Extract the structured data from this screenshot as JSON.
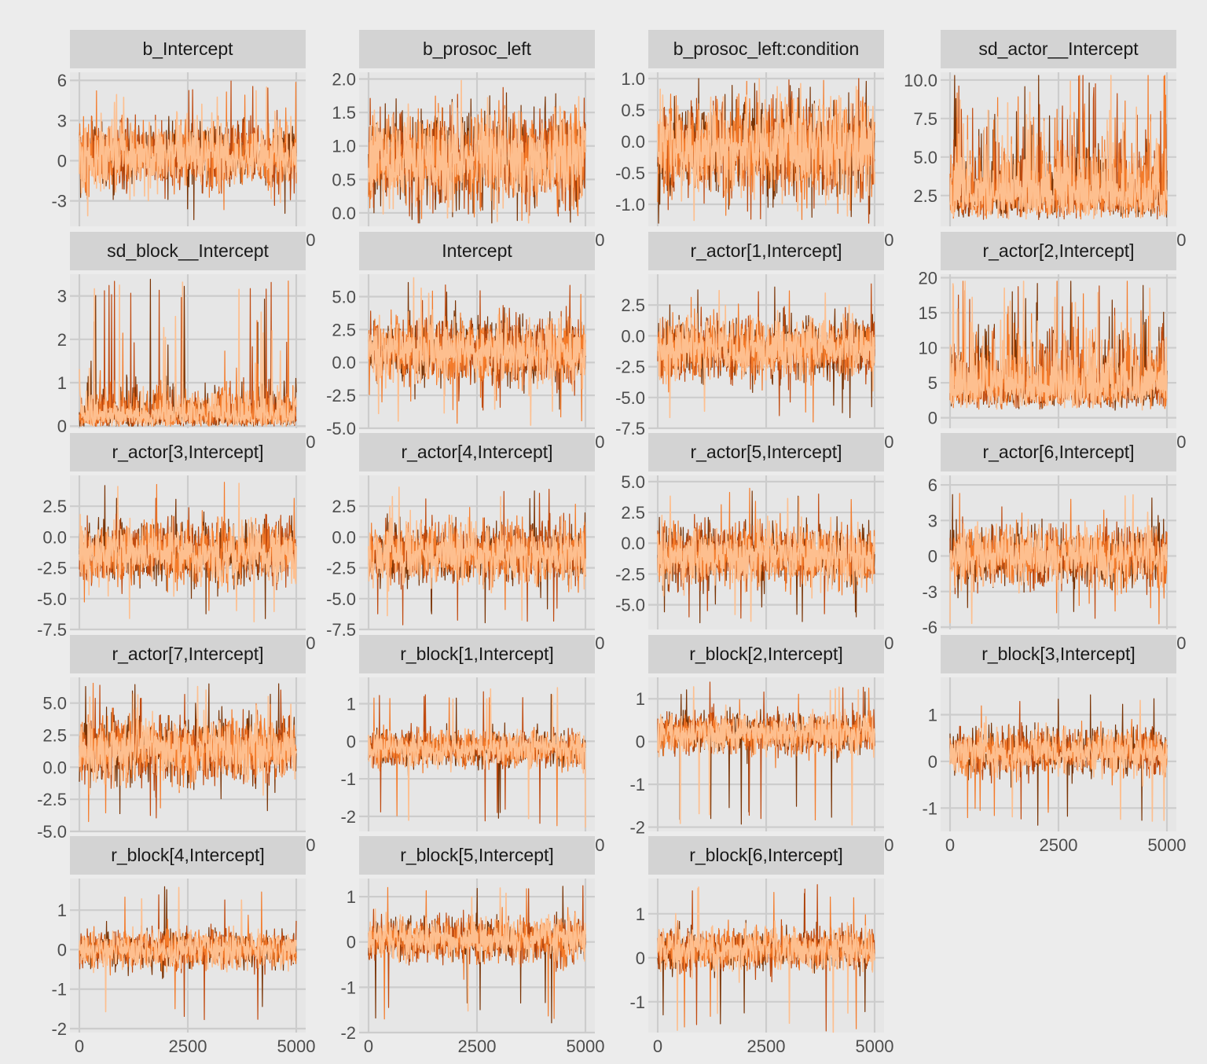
{
  "colors": {
    "background": "#ececec",
    "panel_background": "#e6e6e6",
    "strip_background": "#d3d3d3",
    "gridline": "#cccccc",
    "tick_text": "#4d4d4d",
    "chains": [
      "#7a3405",
      "#c04a0f",
      "#f47b2a",
      "#fdbf8f"
    ]
  },
  "chart_data": {
    "type": "line",
    "description_of_series": "MCMC trace plots, 4 chains per parameter, 5000 post-warmup iterations each",
    "chains": 4,
    "iterations": 5000,
    "xlim": [
      0,
      5000
    ],
    "xticks": [
      0,
      2500,
      5000
    ],
    "xtick_labels": [
      "0",
      "2500",
      "5000"
    ],
    "panels": [
      {
        "title": "b_Intercept",
        "ylim": [
          -4.9,
          6.6
        ],
        "yticks": [
          -3,
          0,
          3,
          6
        ],
        "ytick_labels": [
          "-3",
          "0",
          "3",
          "6"
        ],
        "center": 0.4,
        "spread": 1.6,
        "min": -4.5,
        "max": 6.0,
        "skew": false
      },
      {
        "title": "b_prosoc_left",
        "ylim": [
          -0.2,
          2.1
        ],
        "yticks": [
          0.0,
          0.5,
          1.0,
          1.5,
          2.0
        ],
        "ytick_labels": [
          "0.0",
          "0.5",
          "1.0",
          "1.5",
          "2.0"
        ],
        "center": 0.82,
        "spread": 0.45,
        "min": -0.15,
        "max": 2.0,
        "skew": false
      },
      {
        "title": "b_prosoc_left:condition",
        "ylim": [
          -1.35,
          1.1
        ],
        "yticks": [
          -1.0,
          -0.5,
          0.0,
          0.5,
          1.0
        ],
        "ytick_labels": [
          "-1.0",
          "-0.5",
          "0.0",
          "0.5",
          "1.0"
        ],
        "center": -0.12,
        "spread": 0.5,
        "min": -1.3,
        "max": 1.0,
        "skew": false
      },
      {
        "title": "sd_actor__Intercept",
        "ylim": [
          0.5,
          10.5
        ],
        "yticks": [
          2.5,
          5.0,
          7.5,
          10.0
        ],
        "ytick_labels": [
          "2.5",
          "5.0",
          "7.5",
          "10.0"
        ],
        "center": 2.6,
        "spread": 1.3,
        "min": 0.7,
        "max": 10.3,
        "skew": true
      },
      {
        "title": "sd_block__Intercept",
        "ylim": [
          -0.05,
          3.5
        ],
        "yticks": [
          0,
          1,
          2,
          3
        ],
        "ytick_labels": [
          "0",
          "1",
          "2",
          "3"
        ],
        "center": 0.25,
        "spread": 0.22,
        "min": 0.0,
        "max": 3.4,
        "skew": true
      },
      {
        "title": "Intercept",
        "ylim": [
          -5.0,
          6.7
        ],
        "yticks": [
          -5.0,
          -2.5,
          0.0,
          2.5,
          5.0
        ],
        "ytick_labels": [
          "-5.0",
          "-2.5",
          "0.0",
          "2.5",
          "5.0"
        ],
        "center": 0.8,
        "spread": 1.6,
        "min": -4.8,
        "max": 6.5,
        "skew": false
      },
      {
        "title": "r_actor[1,Intercept]",
        "ylim": [
          -7.5,
          5.0
        ],
        "yticks": [
          -7.5,
          -5.0,
          -2.5,
          0.0,
          2.5
        ],
        "ytick_labels": [
          "-7.5",
          "-5.0",
          "-2.5",
          "0.0",
          "2.5"
        ],
        "center": -1.0,
        "spread": 1.6,
        "min": -7.0,
        "max": 4.5,
        "skew": false
      },
      {
        "title": "r_actor[2,Intercept]",
        "ylim": [
          -1.5,
          20.5
        ],
        "yticks": [
          0,
          5,
          10,
          15,
          20
        ],
        "ytick_labels": [
          "0",
          "5",
          "10",
          "15",
          "20"
        ],
        "center": 4.5,
        "spread": 2.6,
        "min": -1.0,
        "max": 19.5,
        "skew": true
      },
      {
        "title": "r_actor[3,Intercept]",
        "ylim": [
          -7.5,
          5.0
        ],
        "yticks": [
          -7.5,
          -5.0,
          -2.5,
          0.0,
          2.5
        ],
        "ytick_labels": [
          "-7.5",
          "-5.0",
          "-2.5",
          "0.0",
          "2.5"
        ],
        "center": -1.3,
        "spread": 1.6,
        "min": -6.9,
        "max": 4.5,
        "skew": false
      },
      {
        "title": "r_actor[4,Intercept]",
        "ylim": [
          -7.5,
          5.0
        ],
        "yticks": [
          -7.5,
          -5.0,
          -2.5,
          0.0,
          2.5
        ],
        "ytick_labels": [
          "-7.5",
          "-5.0",
          "-2.5",
          "0.0",
          "2.5"
        ],
        "center": -1.3,
        "spread": 1.6,
        "min": -7.3,
        "max": 4.2,
        "skew": false
      },
      {
        "title": "r_actor[5,Intercept]",
        "ylim": [
          -7.0,
          5.5
        ],
        "yticks": [
          -5.0,
          -2.5,
          0.0,
          2.5,
          5.0
        ],
        "ytick_labels": [
          "-5.0",
          "-2.5",
          "0.0",
          "2.5",
          "5.0"
        ],
        "center": -1.0,
        "spread": 1.6,
        "min": -6.6,
        "max": 4.5,
        "skew": false
      },
      {
        "title": "r_actor[6,Intercept]",
        "ylim": [
          -6.2,
          6.8
        ],
        "yticks": [
          -6,
          -3,
          0,
          3,
          6
        ],
        "ytick_labels": [
          "-6",
          "-3",
          "0",
          "3",
          "6"
        ],
        "center": 0.0,
        "spread": 1.6,
        "min": -5.8,
        "max": 5.5,
        "skew": false
      },
      {
        "title": "r_actor[7,Intercept]",
        "ylim": [
          -5.0,
          7.0
        ],
        "yticks": [
          -5.0,
          -2.5,
          0.0,
          2.5,
          5.0
        ],
        "ytick_labels": [
          "-5.0",
          "-2.5",
          "0.0",
          "2.5",
          "5.0"
        ],
        "center": 1.4,
        "spread": 1.6,
        "min": -4.5,
        "max": 6.6,
        "skew": false
      },
      {
        "title": "r_block[1,Intercept]",
        "ylim": [
          -2.4,
          1.7
        ],
        "yticks": [
          -2,
          -1,
          0,
          1
        ],
        "ytick_labels": [
          "-2",
          "-1",
          "0",
          "1"
        ],
        "center": -0.2,
        "spread": 0.3,
        "min": -2.3,
        "max": 1.5,
        "skew": false
      },
      {
        "title": "r_block[2,Intercept]",
        "ylim": [
          -2.1,
          1.5
        ],
        "yticks": [
          -2,
          -1,
          0,
          1
        ],
        "ytick_labels": [
          "-2",
          "-1",
          "0",
          "1"
        ],
        "center": 0.2,
        "spread": 0.3,
        "min": -2.0,
        "max": 1.4,
        "skew": false
      },
      {
        "title": "r_block[3,Intercept]",
        "ylim": [
          -1.5,
          1.8
        ],
        "yticks": [
          -1,
          0,
          1
        ],
        "ytick_labels": [
          "-1",
          "0",
          "1"
        ],
        "center": 0.2,
        "spread": 0.3,
        "min": -1.4,
        "max": 1.5,
        "skew": false
      },
      {
        "title": "r_block[4,Intercept]",
        "ylim": [
          -2.1,
          1.8
        ],
        "yticks": [
          -2,
          -1,
          0,
          1
        ],
        "ytick_labels": [
          "-2",
          "-1",
          "0",
          "1"
        ],
        "center": 0.0,
        "spread": 0.3,
        "min": -1.9,
        "max": 1.6,
        "skew": false
      },
      {
        "title": "r_block[5,Intercept]",
        "ylim": [
          -2.0,
          1.4
        ],
        "yticks": [
          -2,
          -1,
          0,
          1
        ],
        "ytick_labels": [
          "-2",
          "-1",
          "0",
          "1"
        ],
        "center": 0.05,
        "spread": 0.3,
        "min": -1.8,
        "max": 1.3,
        "skew": false
      },
      {
        "title": "r_block[6,Intercept]",
        "ylim": [
          -1.7,
          1.8
        ],
        "yticks": [
          -1,
          0,
          1
        ],
        "ytick_labels": [
          "-1",
          "0",
          "1"
        ],
        "center": 0.2,
        "spread": 0.3,
        "min": -1.7,
        "max": 1.7,
        "skew": false
      }
    ]
  }
}
